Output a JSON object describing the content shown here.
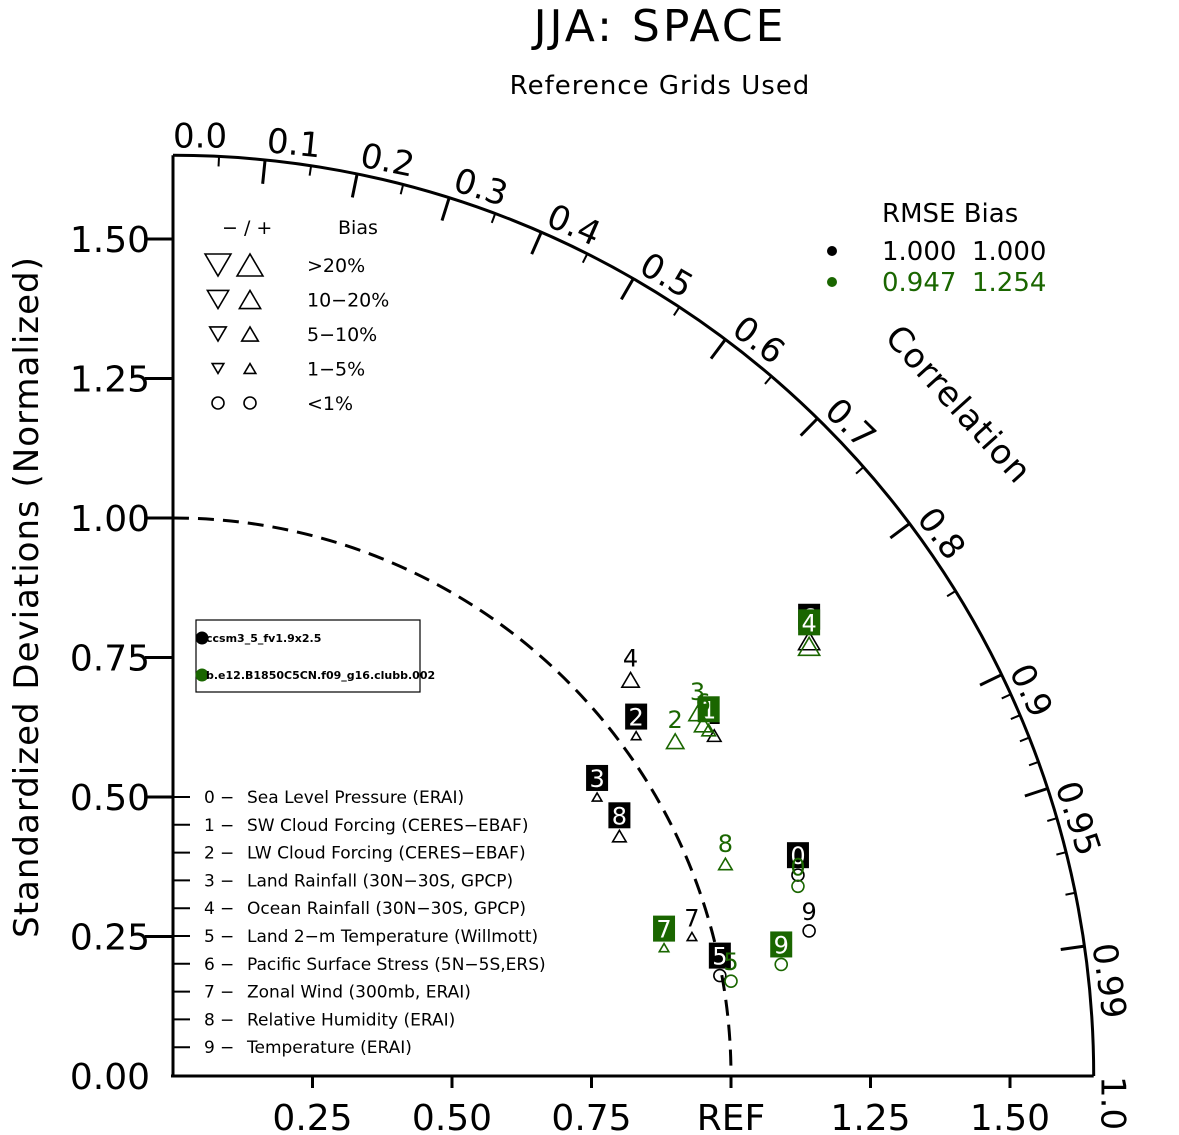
{
  "chart_data": {
    "type": "scatter",
    "subtype": "taylor-diagram",
    "title": "JJA: SPACE",
    "subtitle": "Reference Grids Used",
    "ylabel": "Standardized Deviations (Normalized)",
    "corr_label": "Correlation",
    "ref_label": "REF",
    "ylim": [
      0,
      1.65
    ],
    "y_ticks": [
      {
        "v": 0.0,
        "label": "0.00"
      },
      {
        "v": 0.25,
        "label": "0.25"
      },
      {
        "v": 0.5,
        "label": "0.50"
      },
      {
        "v": 0.75,
        "label": "0.75"
      },
      {
        "v": 1.0,
        "label": "1.00"
      },
      {
        "v": 1.25,
        "label": "1.25"
      },
      {
        "v": 1.5,
        "label": "1.50"
      }
    ],
    "x_ticks": [
      {
        "v": 0.25,
        "label": "0.25"
      },
      {
        "v": 0.5,
        "label": "0.50"
      },
      {
        "v": 0.75,
        "label": "0.75"
      },
      {
        "v": 1.0,
        "label": "REF"
      },
      {
        "v": 1.25,
        "label": "1.25"
      },
      {
        "v": 1.5,
        "label": "1.50"
      }
    ],
    "corr_ticks": [
      {
        "v": 0.0,
        "label": "0.0"
      },
      {
        "v": 0.1,
        "label": "0.1"
      },
      {
        "v": 0.2,
        "label": "0.2"
      },
      {
        "v": 0.3,
        "label": "0.3"
      },
      {
        "v": 0.4,
        "label": "0.4"
      },
      {
        "v": 0.5,
        "label": "0.5"
      },
      {
        "v": 0.6,
        "label": "0.6"
      },
      {
        "v": 0.7,
        "label": "0.7"
      },
      {
        "v": 0.8,
        "label": "0.8"
      },
      {
        "v": 0.9,
        "label": "0.9"
      },
      {
        "v": 0.95,
        "label": "0.95"
      },
      {
        "v": 0.99,
        "label": "0.99"
      },
      {
        "v": 1.0,
        "label": "1.0"
      }
    ],
    "ref_arc_std": 1.0,
    "bias_legend": {
      "header_signs": "−  /  +",
      "header_bias": "Bias",
      "rows": [
        {
          "range": ">20%",
          "shape": "triangle",
          "size": 1.0
        },
        {
          "range": "10−20%",
          "shape": "triangle",
          "size": 0.82
        },
        {
          "range": "5−10%",
          "shape": "triangle",
          "size": 0.64
        },
        {
          "range": "1−5%",
          "shape": "triangle",
          "size": 0.45
        },
        {
          "range": "<1%",
          "shape": "circle",
          "size": 0.55
        }
      ]
    },
    "rmse_bias_table": {
      "header": "RMSE  Bias",
      "rows": [
        {
          "color": "#000000",
          "rmse": "1.000",
          "bias": "1.000"
        },
        {
          "color": "#1a6600",
          "rmse": "0.947",
          "bias": "1.254"
        }
      ]
    },
    "case_legend": [
      {
        "name": "ccsm3_5_fv1.9x2.5",
        "color": "#000000"
      },
      {
        "name": "b.e12.B1850C5CN.f09_g16.clubb.002",
        "color": "#1a6600"
      }
    ],
    "variables": [
      {
        "id": "0",
        "name": "Sea Level Pressure (ERAI)"
      },
      {
        "id": "1",
        "name": "SW Cloud Forcing (CERES−EBAF)"
      },
      {
        "id": "2",
        "name": "LW Cloud Forcing (CERES−EBAF)"
      },
      {
        "id": "3",
        "name": "Land Rainfall (30N−30S, GPCP)"
      },
      {
        "id": "4",
        "name": "Ocean Rainfall (30N−30S, GPCP)"
      },
      {
        "id": "5",
        "name": "Land 2−m Temperature (Willmott)"
      },
      {
        "id": "6",
        "name": "Pacific Surface Stress (5N−5S,ERS)"
      },
      {
        "id": "7",
        "name": "Zonal Wind (300mb, ERAI)"
      },
      {
        "id": "8",
        "name": "Relative Humidity (ERAI)"
      },
      {
        "id": "9",
        "name": "Temperature (ERAI)"
      }
    ],
    "series": [
      {
        "case": "ccsm3_5_fv1.9x2.5",
        "color": "#000000",
        "points": [
          {
            "id": "0",
            "x": 1.12,
            "y": 0.36,
            "marker": "circle",
            "bias_size": 0.55,
            "boxed": true
          },
          {
            "id": "1",
            "x": 0.97,
            "y": 0.61,
            "marker": "up",
            "bias_size": 0.64,
            "boxed": false
          },
          {
            "id": "2",
            "x": 0.83,
            "y": 0.61,
            "marker": "up",
            "bias_size": 0.45,
            "boxed": true
          },
          {
            "id": "3",
            "x": 0.76,
            "y": 0.5,
            "marker": "up",
            "bias_size": 0.45,
            "boxed": true
          },
          {
            "id": "4",
            "x": 0.82,
            "y": 0.71,
            "marker": "up",
            "bias_size": 0.82,
            "boxed": false
          },
          {
            "id": "5",
            "x": 0.98,
            "y": 0.18,
            "marker": "circle",
            "bias_size": 0.55,
            "boxed": true
          },
          {
            "id": "6",
            "x": 1.14,
            "y": 0.78,
            "marker": "up",
            "bias_size": 1.0,
            "boxed": true
          },
          {
            "id": "7",
            "x": 0.93,
            "y": 0.25,
            "marker": "up",
            "bias_size": 0.45,
            "boxed": false
          },
          {
            "id": "8",
            "x": 0.8,
            "y": 0.43,
            "marker": "up",
            "bias_size": 0.64,
            "boxed": true
          },
          {
            "id": "9",
            "x": 1.14,
            "y": 0.26,
            "marker": "circle",
            "bias_size": 0.55,
            "boxed": false
          }
        ]
      },
      {
        "case": "b.e12.B1850C5CN.f09_g16.clubb.002",
        "color": "#1a6600",
        "points": [
          {
            "id": "0",
            "x": 1.12,
            "y": 0.34,
            "marker": "circle",
            "bias_size": 0.55,
            "boxed": false
          },
          {
            "id": "1",
            "x": 0.96,
            "y": 0.62,
            "marker": "up",
            "bias_size": 0.64,
            "boxed": true
          },
          {
            "id": "2",
            "x": 0.9,
            "y": 0.6,
            "marker": "up",
            "bias_size": 0.82,
            "boxed": false
          },
          {
            "id": "3",
            "x": 0.94,
            "y": 0.65,
            "marker": "up",
            "bias_size": 0.82,
            "boxed": false
          },
          {
            "id": "4",
            "x": 1.14,
            "y": 0.77,
            "marker": "up",
            "bias_size": 1.0,
            "boxed": true
          },
          {
            "id": "5",
            "x": 1.0,
            "y": 0.17,
            "marker": "circle",
            "bias_size": 0.55,
            "boxed": false
          },
          {
            "id": "6",
            "x": 0.95,
            "y": 0.63,
            "marker": "up",
            "bias_size": 0.82,
            "boxed": false
          },
          {
            "id": "7",
            "x": 0.88,
            "y": 0.23,
            "marker": "up",
            "bias_size": 0.45,
            "boxed": true
          },
          {
            "id": "8",
            "x": 0.99,
            "y": 0.38,
            "marker": "up",
            "bias_size": 0.64,
            "boxed": false
          },
          {
            "id": "9",
            "x": 1.09,
            "y": 0.2,
            "marker": "circle",
            "bias_size": 0.55,
            "boxed": true
          }
        ]
      }
    ]
  }
}
